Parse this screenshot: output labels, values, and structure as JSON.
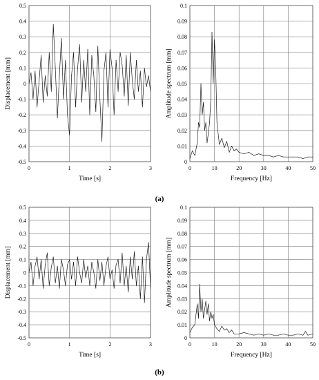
{
  "figure": {
    "captions": [
      "(a)",
      "(b)"
    ]
  },
  "chart_data": [
    {
      "type": "line",
      "panel": "a-left",
      "xlabel": "Time [s]",
      "ylabel": "Displacement [mm]",
      "xlim": [
        0,
        3
      ],
      "ylim": [
        -0.5,
        0.5
      ],
      "xticks": [
        "0",
        "1",
        "2",
        "3"
      ],
      "yticks": [
        "-0.5",
        "-0.4",
        "-0.3",
        "-0.2",
        "-0.1",
        "0",
        "0.1",
        "0.2",
        "0.3",
        "0.4",
        "0.5"
      ],
      "grid": true,
      "series": [
        {
          "x": [
            0,
            0.05,
            0.1,
            0.15,
            0.2,
            0.25,
            0.3,
            0.35,
            0.4,
            0.45,
            0.5,
            0.55,
            0.6,
            0.65,
            0.7,
            0.75,
            0.8,
            0.85,
            0.9,
            0.95,
            1.0,
            1.05,
            1.1,
            1.15,
            1.2,
            1.25,
            1.3,
            1.35,
            1.4,
            1.45,
            1.5,
            1.55,
            1.6,
            1.65,
            1.7,
            1.75,
            1.8,
            1.85,
            1.9,
            1.95,
            2.0,
            2.05,
            2.1,
            2.15,
            2.2,
            2.25,
            2.3,
            2.35,
            2.4,
            2.45,
            2.5,
            2.55,
            2.6,
            2.65,
            2.7,
            2.75,
            2.8,
            2.85,
            2.9,
            2.95,
            3.0
          ],
          "values": [
            0.0,
            0.07,
            -0.1,
            0.08,
            -0.15,
            0.02,
            0.18,
            -0.12,
            0.05,
            -0.08,
            0.2,
            -0.05,
            0.38,
            0.1,
            -0.22,
            0.05,
            0.29,
            -0.1,
            0.15,
            -0.2,
            -0.33,
            0.05,
            0.2,
            -0.15,
            0.1,
            0.25,
            -0.12,
            0.15,
            -0.05,
            0.22,
            -0.2,
            0.18,
            0.05,
            -0.18,
            0.24,
            -0.1,
            -0.37,
            0.08,
            0.2,
            -0.15,
            0.22,
            0.1,
            -0.2,
            0.15,
            -0.05,
            0.2,
            0.12,
            -0.08,
            0.18,
            -0.14,
            0.2,
            0.02,
            -0.1,
            0.15,
            -0.05,
            0.08,
            -0.15,
            0.1,
            -0.02,
            0.05,
            -0.05
          ]
        }
      ]
    },
    {
      "type": "line",
      "panel": "a-right",
      "xlabel": "Frequency [Hz]",
      "ylabel": "Amplitude spectrum [mm]",
      "xlim": [
        0,
        50
      ],
      "ylim": [
        0,
        0.1
      ],
      "xticks": [
        "0",
        "10",
        "20",
        "30",
        "40",
        "50"
      ],
      "yticks": [
        "0",
        "0.01",
        "0.02",
        "0.03",
        "0.04",
        "0.05",
        "0.06",
        "0.07",
        "0.08",
        "0.09",
        "0.1"
      ],
      "grid": true,
      "series": [
        {
          "x": [
            0,
            1,
            2,
            3,
            3.5,
            4,
            4.5,
            5,
            5.5,
            6,
            6.5,
            7,
            7.5,
            8,
            8.5,
            9,
            9.5,
            10,
            10.5,
            11,
            12,
            13,
            14,
            15,
            16,
            17,
            18,
            19,
            20,
            22,
            24,
            26,
            28,
            30,
            32,
            34,
            36,
            38,
            40,
            42,
            44,
            46,
            48,
            50
          ],
          "values": [
            0.002,
            0.007,
            0.004,
            0.012,
            0.025,
            0.022,
            0.05,
            0.03,
            0.038,
            0.02,
            0.025,
            0.012,
            0.018,
            0.025,
            0.04,
            0.083,
            0.05,
            0.078,
            0.06,
            0.025,
            0.011,
            0.015,
            0.009,
            0.013,
            0.006,
            0.01,
            0.007,
            0.008,
            0.006,
            0.005,
            0.006,
            0.004,
            0.005,
            0.004,
            0.004,
            0.003,
            0.004,
            0.003,
            0.003,
            0.003,
            0.003,
            0.002,
            0.003,
            0.003
          ]
        }
      ]
    },
    {
      "type": "line",
      "panel": "b-left",
      "xlabel": "Time [s]",
      "ylabel": "Displacement [mm]",
      "xlim": [
        0,
        3
      ],
      "ylim": [
        -0.5,
        0.5
      ],
      "xticks": [
        "0",
        "1",
        "2",
        "3"
      ],
      "yticks": [
        "-0.5",
        "-0.4",
        "-0.3",
        "-0.2",
        "-0.1",
        "0",
        "0.1",
        "0.2",
        "0.3",
        "0.4",
        "0.5"
      ],
      "grid": true,
      "series": [
        {
          "x": [
            0,
            0.05,
            0.1,
            0.15,
            0.2,
            0.25,
            0.3,
            0.35,
            0.4,
            0.45,
            0.5,
            0.55,
            0.6,
            0.65,
            0.7,
            0.75,
            0.8,
            0.85,
            0.9,
            0.95,
            1.0,
            1.05,
            1.1,
            1.15,
            1.2,
            1.25,
            1.3,
            1.35,
            1.4,
            1.45,
            1.5,
            1.55,
            1.6,
            1.65,
            1.7,
            1.75,
            1.8,
            1.85,
            1.9,
            1.95,
            2.0,
            2.05,
            2.1,
            2.15,
            2.2,
            2.25,
            2.3,
            2.35,
            2.4,
            2.45,
            2.5,
            2.55,
            2.6,
            2.65,
            2.7,
            2.75,
            2.8,
            2.85,
            2.9,
            2.95,
            3.0
          ],
          "values": [
            0.0,
            0.08,
            -0.1,
            0.05,
            0.12,
            -0.05,
            0.1,
            -0.12,
            0.06,
            0.15,
            -0.1,
            0.04,
            0.12,
            -0.08,
            0.05,
            -0.12,
            0.1,
            0.02,
            -0.1,
            0.06,
            0.1,
            -0.05,
            0.08,
            -0.1,
            0.12,
            0.0,
            -0.08,
            0.1,
            -0.04,
            0.05,
            -0.1,
            0.08,
            0.0,
            -0.12,
            0.1,
            -0.06,
            0.08,
            -0.1,
            0.05,
            0.12,
            -0.05,
            0.02,
            -0.12,
            0.06,
            0.1,
            -0.08,
            0.15,
            -0.1,
            0.05,
            -0.15,
            0.12,
            -0.05,
            0.16,
            -0.1,
            0.05,
            -0.2,
            0.12,
            -0.23,
            0.1,
            0.23,
            -0.12
          ]
        }
      ]
    },
    {
      "type": "line",
      "panel": "b-right",
      "xlabel": "Frequency [Hz]",
      "ylabel": "Amplitude spectrum [mm]",
      "xlim": [
        0,
        50
      ],
      "ylim": [
        0,
        0.1
      ],
      "xticks": [
        "0",
        "10",
        "20",
        "30",
        "40",
        "50"
      ],
      "yticks": [
        "0",
        "0.01",
        "0.02",
        "0.03",
        "0.04",
        "0.05",
        "0.06",
        "0.07",
        "0.08",
        "0.09",
        "0.1"
      ],
      "grid": true,
      "series": [
        {
          "x": [
            0,
            1,
            2,
            3,
            3.5,
            4,
            4.5,
            5,
            5.5,
            6,
            6.5,
            7,
            7.5,
            8,
            8.5,
            9,
            9.5,
            10,
            11,
            12,
            13,
            14,
            15,
            16,
            17,
            18,
            20,
            22,
            24,
            26,
            28,
            30,
            32,
            34,
            36,
            38,
            40,
            42,
            44,
            46,
            47,
            48,
            50
          ],
          "values": [
            0.004,
            0.008,
            0.01,
            0.026,
            0.015,
            0.041,
            0.02,
            0.03,
            0.015,
            0.022,
            0.028,
            0.018,
            0.026,
            0.013,
            0.02,
            0.015,
            0.018,
            0.01,
            0.007,
            0.005,
            0.009,
            0.006,
            0.007,
            0.004,
            0.006,
            0.003,
            0.003,
            0.004,
            0.003,
            0.002,
            0.003,
            0.002,
            0.003,
            0.002,
            0.002,
            0.003,
            0.002,
            0.002,
            0.003,
            0.002,
            0.005,
            0.002,
            0.003
          ]
        }
      ]
    }
  ]
}
